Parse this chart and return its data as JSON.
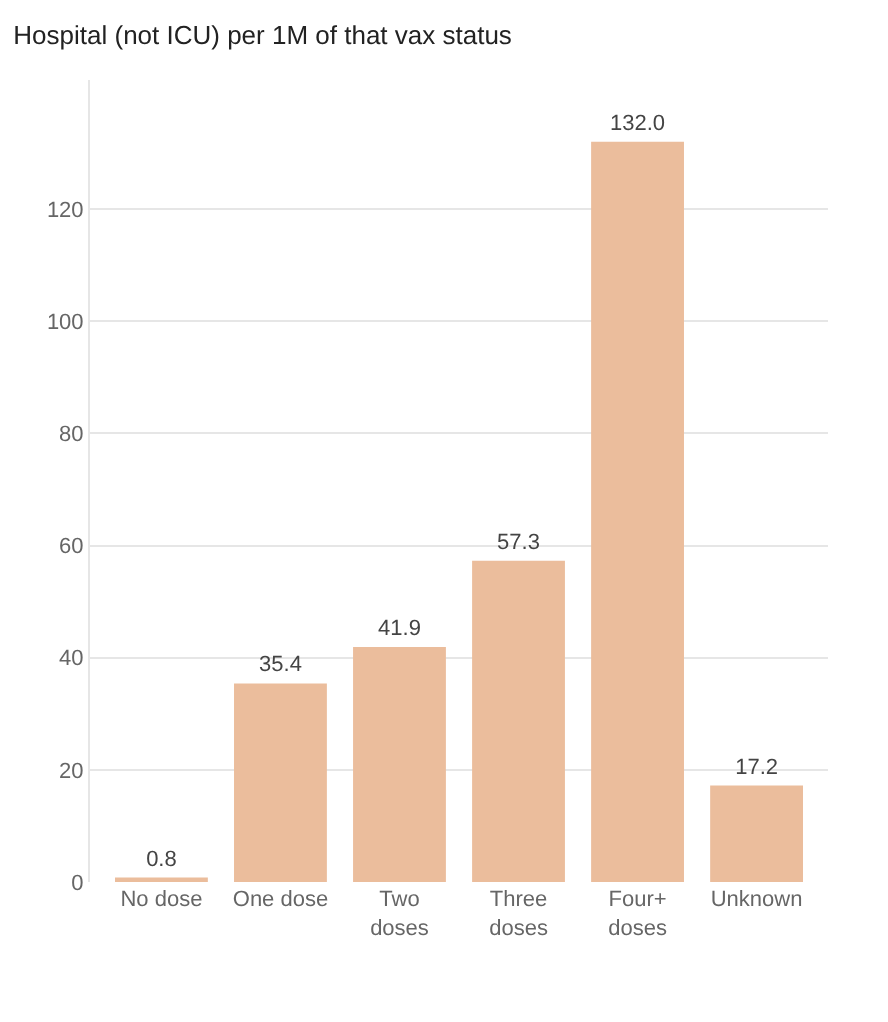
{
  "chart_data": {
    "type": "bar",
    "title": "Hospital (not ICU) per 1M of that vax status",
    "categories": [
      "No dose",
      "One dose",
      "Two doses",
      "Three doses",
      "Four+ doses",
      "Unknown"
    ],
    "values": [
      0.8,
      35.4,
      41.9,
      57.3,
      132.0,
      17.2
    ],
    "color": "#ebbd9c",
    "value_labels": [
      "0.8",
      "35.4",
      "41.9",
      "57.3",
      "132.0",
      "17.2"
    ],
    "ylim": [
      0,
      143
    ],
    "yticks": [
      0,
      20,
      40,
      60,
      80,
      100,
      120
    ],
    "grid": "y"
  }
}
